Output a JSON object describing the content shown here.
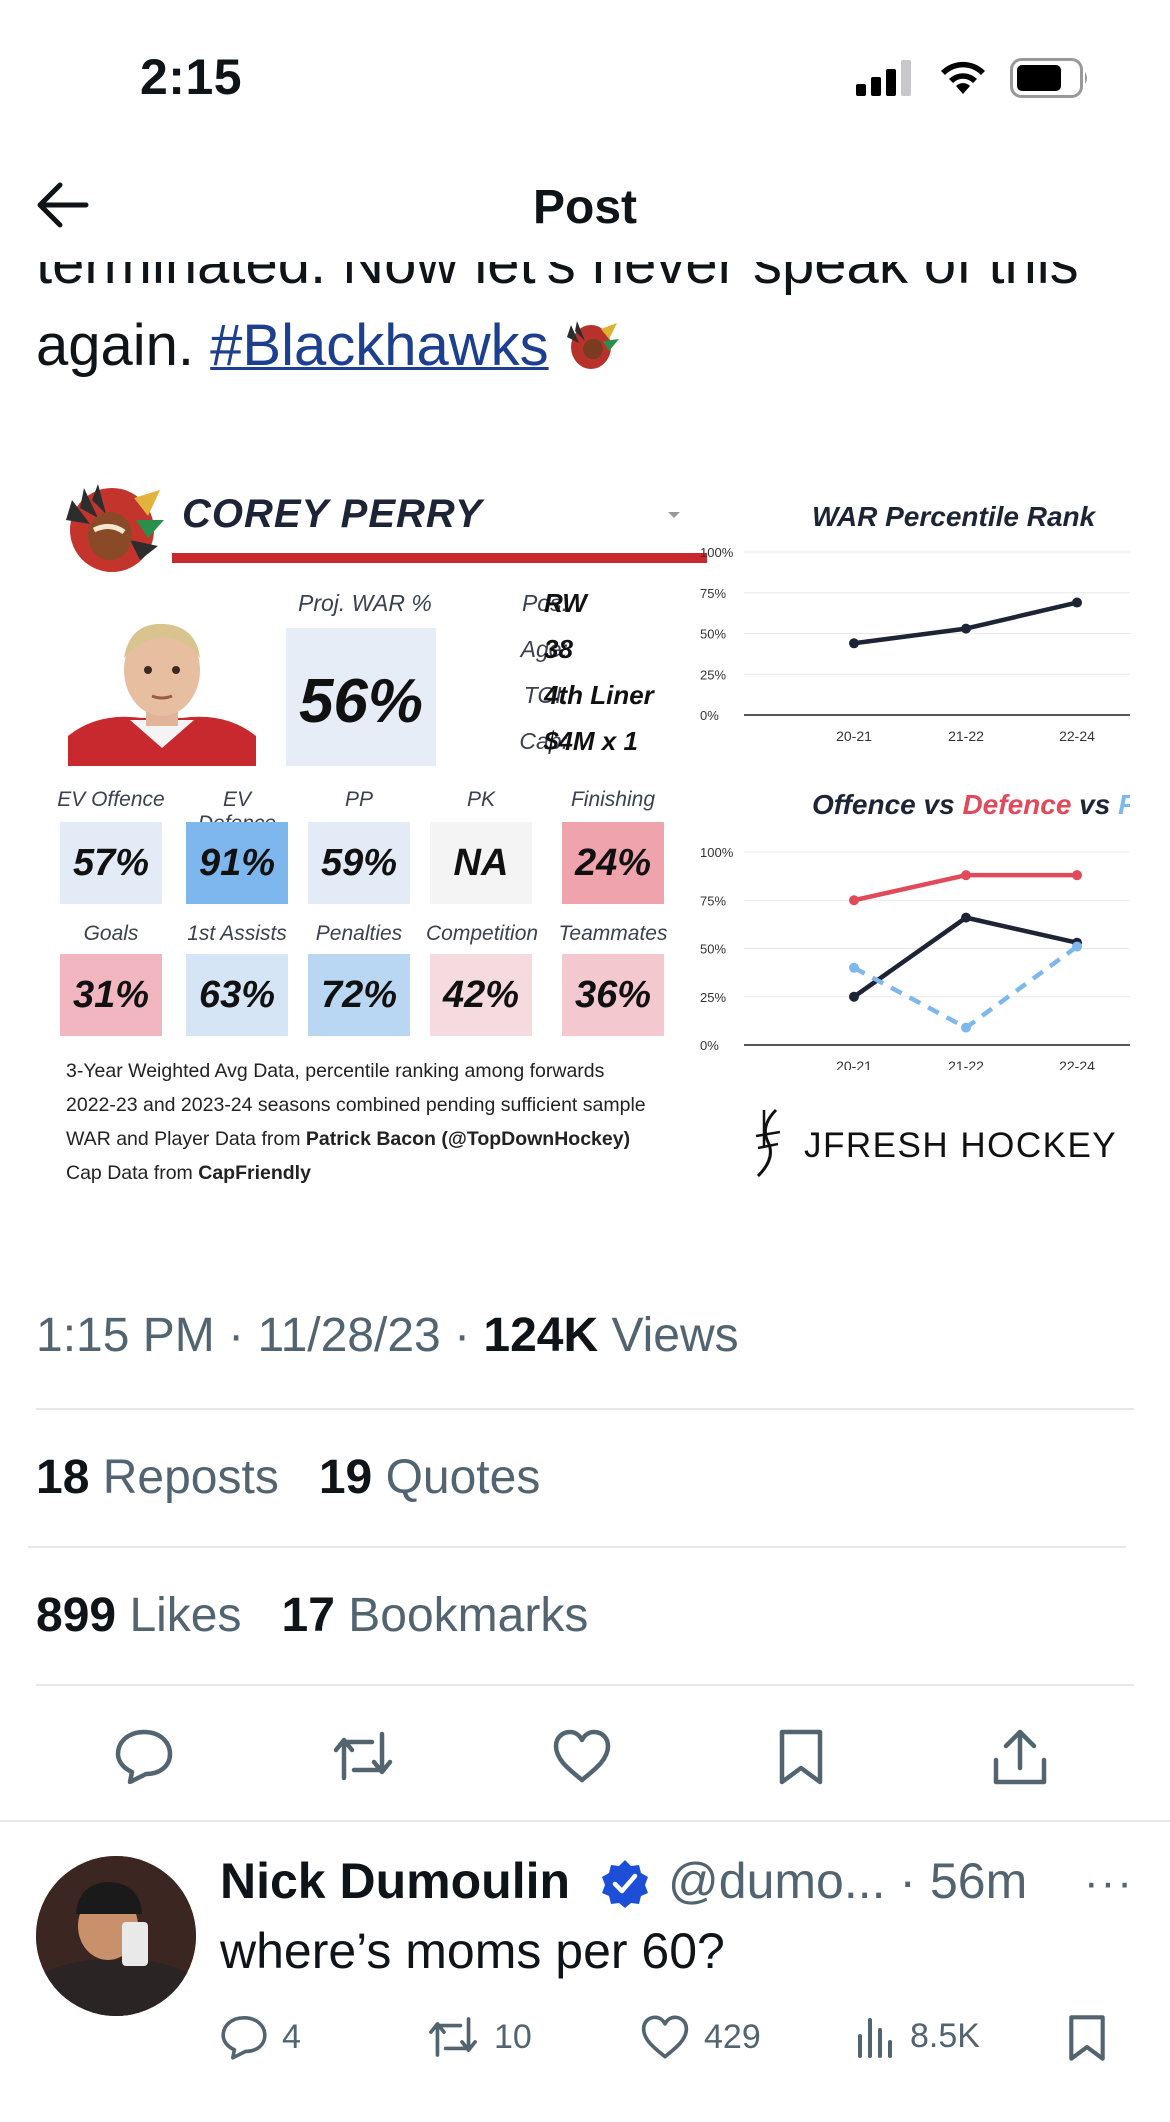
{
  "status_bar": {
    "time": "2:15"
  },
  "header": {
    "title": "Post"
  },
  "tweet": {
    "text_line1_partial": "terminated. Now let's never speak of this",
    "text_line2_prefix": "again.",
    "hashtag": "#Blackhawks"
  },
  "card": {
    "player_name": "COREY PERRY",
    "proj_war_label": "Proj. WAR %",
    "proj_war_value": "56%",
    "info": [
      {
        "label": "Pos:",
        "value": "RW"
      },
      {
        "label": "Age:",
        "value": "38"
      },
      {
        "label": "TOI:",
        "value": "4th Liner"
      },
      {
        "label": "Cap:",
        "value": "$4M x 1"
      }
    ],
    "metrics_row1": [
      {
        "label": "EV Offence",
        "value": "57%",
        "color": "#e3ebf6"
      },
      {
        "label": "EV Defence",
        "value": "91%",
        "color": "#7db7ee"
      },
      {
        "label": "PP",
        "value": "59%",
        "color": "#e3ebf6"
      },
      {
        "label": "PK",
        "value": "NA",
        "color": "#f4f4f4"
      },
      {
        "label": "Finishing",
        "value": "24%",
        "color": "#eea3ad"
      }
    ],
    "metrics_row2": [
      {
        "label": "Goals",
        "value": "31%",
        "color": "#f1b6bf"
      },
      {
        "label": "1st Assists",
        "value": "63%",
        "color": "#d6e5f6"
      },
      {
        "label": "Penalties",
        "value": "72%",
        "color": "#b9d6f2"
      },
      {
        "label": "Competition",
        "value": "42%",
        "color": "#f5dbe0"
      },
      {
        "label": "Teammates",
        "value": "36%",
        "color": "#f3c8cf"
      }
    ],
    "footnotes": {
      "line1": "3-Year Weighted Avg Data, percentile ranking among forwards",
      "line2": "2022-23 and 2023-24 seasons combined pending sufficient sample",
      "line3_prefix": "WAR and Player Data from",
      "line3_bold": "Patrick Bacon (@TopDownHockey)",
      "line4_prefix": "Cap Data from",
      "line4_bold": "CapFriendly"
    },
    "brand": "JFRESH HOCKEY"
  },
  "chart_data": [
    {
      "type": "line",
      "title": "WAR Percentile Rank",
      "categories": [
        "20-21",
        "21-22",
        "22-24"
      ],
      "y_ticks": [
        "100%",
        "75%",
        "50%",
        "25%",
        "0%"
      ],
      "ylim": [
        0,
        100
      ],
      "series": [
        {
          "values": [
            44,
            53,
            69
          ],
          "color": "#1d2436",
          "dashed": false
        }
      ]
    },
    {
      "type": "line",
      "title_parts": [
        {
          "text": "Offence",
          "color": "#1d2436"
        },
        {
          "text": " vs ",
          "color": "#1d2436"
        },
        {
          "text": "Defence",
          "color": "#e04a5a"
        },
        {
          "text": " vs ",
          "color": "#1d2436"
        },
        {
          "text": "Finishing",
          "color": "#7db7ee"
        }
      ],
      "categories": [
        "20-21",
        "21-22",
        "22-24"
      ],
      "y_ticks": [
        "100%",
        "75%",
        "50%",
        "25%",
        "0%"
      ],
      "ylim": [
        0,
        100
      ],
      "series": [
        {
          "name": "Offence",
          "values": [
            25,
            66,
            53
          ],
          "color": "#1d2436",
          "dashed": false
        },
        {
          "name": "Defence",
          "values": [
            75,
            88,
            88
          ],
          "color": "#e04a5a",
          "dashed": false
        },
        {
          "name": "Finishing",
          "values": [
            40,
            9,
            51
          ],
          "color": "#7db7ee",
          "dashed": true
        }
      ]
    }
  ],
  "meta": {
    "time": "1:15 PM",
    "sep": "·",
    "date": "11/28/23",
    "views_count": "124K",
    "views_label": "Views"
  },
  "stats": {
    "reposts_count": "18",
    "reposts_label": "Reposts",
    "quotes_count": "19",
    "quotes_label": "Quotes",
    "likes_count": "899",
    "likes_label": "Likes",
    "bookmarks_count": "17",
    "bookmarks_label": "Bookmarks"
  },
  "reply": {
    "name": "Nick Dumoulin",
    "handle": "@dumo...",
    "time": "· 56m",
    "more": "···",
    "text": "where’s moms per 60?",
    "replies": "4",
    "reposts": "10",
    "likes": "429",
    "views": "8.5K"
  },
  "icons": {
    "back": "back-arrow-icon",
    "reply": "reply-icon",
    "repost": "repost-icon",
    "like": "heart-icon",
    "bookmark": "bookmark-icon",
    "share": "share-icon",
    "views": "views-icon",
    "verified": "verified-badge-icon"
  }
}
